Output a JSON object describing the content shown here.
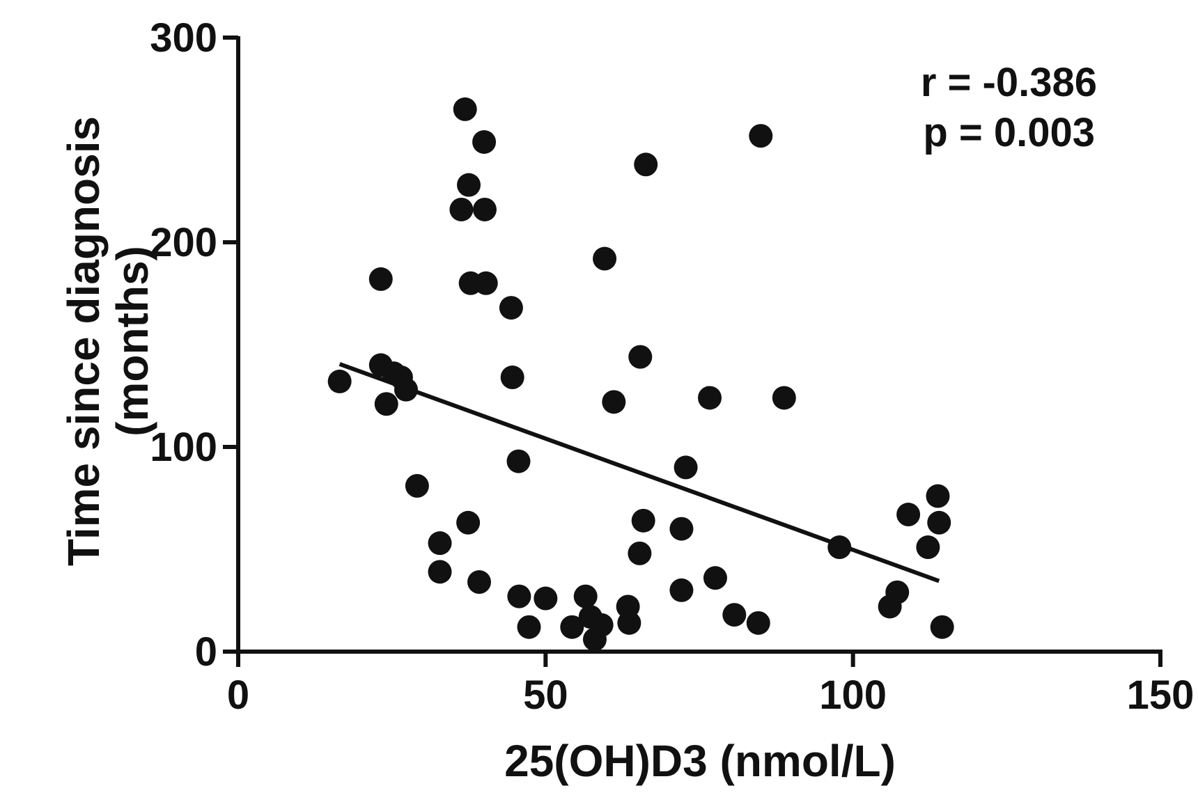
{
  "chart_data": {
    "type": "scatter",
    "title": "",
    "xlabel": "25(OH)D3 (nmol/L)",
    "ylabel_lines": [
      "Time since diagnosis",
      "(months)"
    ],
    "xlim": [
      0,
      150
    ],
    "ylim": [
      0,
      300
    ],
    "xticks": [
      0,
      50,
      100,
      150
    ],
    "yticks": [
      0,
      100,
      200,
      300
    ],
    "xtick_labels": [
      "0",
      "50",
      "100",
      "150"
    ],
    "ytick_labels": [
      "0",
      "100",
      "200",
      "300"
    ],
    "grid": false,
    "annotations": [
      "r = -0.386",
      "p = 0.003"
    ],
    "points": [
      {
        "x": 16.5,
        "y": 132
      },
      {
        "x": 23.2,
        "y": 182
      },
      {
        "x": 23.2,
        "y": 140
      },
      {
        "x": 24.1,
        "y": 121
      },
      {
        "x": 25.3,
        "y": 136
      },
      {
        "x": 26.5,
        "y": 134
      },
      {
        "x": 27.3,
        "y": 128
      },
      {
        "x": 29.1,
        "y": 81
      },
      {
        "x": 32.8,
        "y": 53
      },
      {
        "x": 32.8,
        "y": 39
      },
      {
        "x": 36.3,
        "y": 216
      },
      {
        "x": 36.9,
        "y": 265
      },
      {
        "x": 37.5,
        "y": 228
      },
      {
        "x": 37.4,
        "y": 63
      },
      {
        "x": 37.8,
        "y": 180
      },
      {
        "x": 39.2,
        "y": 34
      },
      {
        "x": 40.0,
        "y": 249
      },
      {
        "x": 40.1,
        "y": 216
      },
      {
        "x": 40.3,
        "y": 180
      },
      {
        "x": 44.4,
        "y": 168
      },
      {
        "x": 44.6,
        "y": 134
      },
      {
        "x": 45.6,
        "y": 93
      },
      {
        "x": 45.7,
        "y": 27
      },
      {
        "x": 47.3,
        "y": 12
      },
      {
        "x": 50.0,
        "y": 26
      },
      {
        "x": 54.3,
        "y": 12
      },
      {
        "x": 56.5,
        "y": 27
      },
      {
        "x": 57.3,
        "y": 17
      },
      {
        "x": 58.0,
        "y": 6
      },
      {
        "x": 59.1,
        "y": 13
      },
      {
        "x": 59.6,
        "y": 192
      },
      {
        "x": 61.1,
        "y": 122
      },
      {
        "x": 63.4,
        "y": 22
      },
      {
        "x": 63.6,
        "y": 14
      },
      {
        "x": 65.3,
        "y": 48
      },
      {
        "x": 65.4,
        "y": 144
      },
      {
        "x": 65.9,
        "y": 64
      },
      {
        "x": 66.3,
        "y": 238
      },
      {
        "x": 72.1,
        "y": 60
      },
      {
        "x": 72.1,
        "y": 30
      },
      {
        "x": 72.8,
        "y": 90
      },
      {
        "x": 76.7,
        "y": 124
      },
      {
        "x": 77.6,
        "y": 36
      },
      {
        "x": 80.7,
        "y": 18
      },
      {
        "x": 84.6,
        "y": 14
      },
      {
        "x": 85.0,
        "y": 252
      },
      {
        "x": 88.8,
        "y": 124
      },
      {
        "x": 97.8,
        "y": 51
      },
      {
        "x": 106.0,
        "y": 22
      },
      {
        "x": 107.2,
        "y": 29
      },
      {
        "x": 109.0,
        "y": 67
      },
      {
        "x": 112.2,
        "y": 51
      },
      {
        "x": 113.8,
        "y": 76
      },
      {
        "x": 114.0,
        "y": 63
      },
      {
        "x": 114.5,
        "y": 12
      }
    ],
    "regression_line": {
      "x": [
        16.5,
        114.0
      ],
      "y": [
        140.5,
        34.5
      ]
    }
  }
}
